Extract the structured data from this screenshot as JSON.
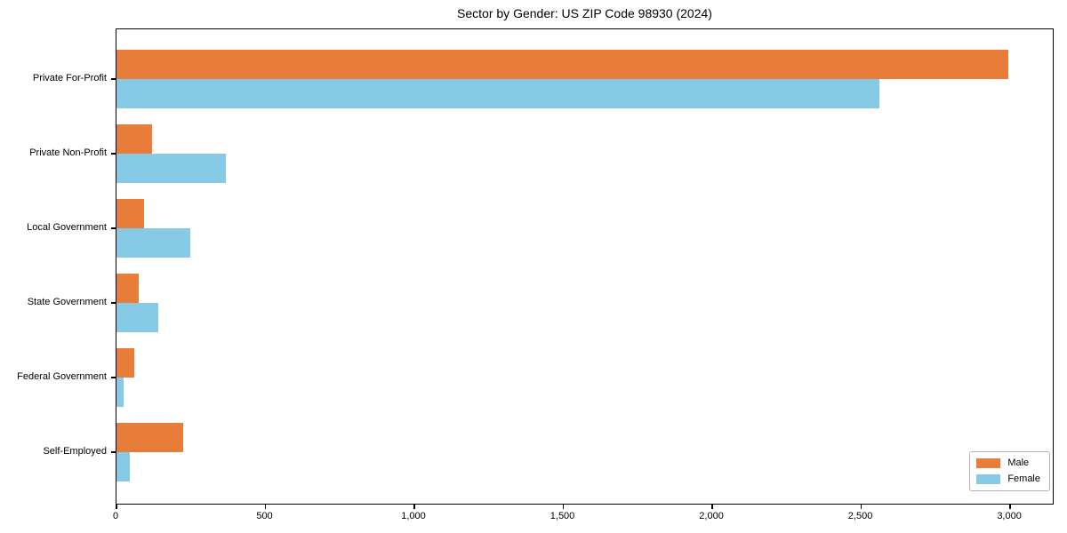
{
  "title": "Sector by Gender: US ZIP Code 98930 (2024)",
  "colors": {
    "male": "#e87d3a",
    "female": "#87cae6",
    "axis": "#000000",
    "legend_border": "#b3b3b3",
    "background": "#ffffff"
  },
  "legend": {
    "position": "lower-right",
    "items": [
      {
        "label": "Male"
      },
      {
        "label": "Female"
      }
    ]
  },
  "chart_data": {
    "type": "bar",
    "orientation": "horizontal",
    "title": "Sector by Gender: US ZIP Code 98930 (2024)",
    "categories": [
      "Private For-Profit",
      "Private Non-Profit",
      "Local Government",
      "State Government",
      "Federal Government",
      "Self-Employed"
    ],
    "series": [
      {
        "name": "Male",
        "color": "#e87d3a",
        "values": [
          3000,
          120,
          92,
          74,
          60,
          225
        ]
      },
      {
        "name": "Female",
        "color": "#87cae6",
        "values": [
          2565,
          368,
          249,
          140,
          24,
          44
        ]
      }
    ],
    "xlabel": "",
    "ylabel": "",
    "xlim": [
      0,
      3149
    ],
    "x_ticks": [
      0,
      500,
      1000,
      1500,
      2000,
      2500,
      3000
    ],
    "x_tick_labels": [
      "0",
      "500",
      "1,000",
      "1,500",
      "2,000",
      "2,500",
      "3,000"
    ],
    "grid": false,
    "legend_position": "lower right"
  }
}
